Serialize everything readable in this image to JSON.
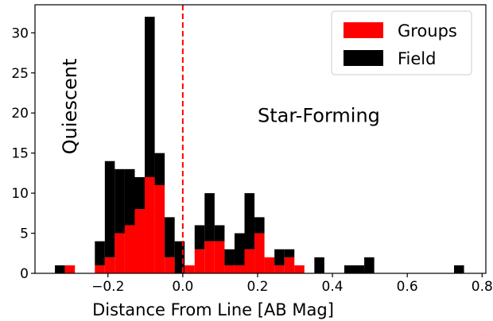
{
  "chart_data": {
    "type": "bar",
    "stacked": true,
    "xlabel": "Distance From Line [AB Mag]",
    "ylabel": "",
    "xlim": [
      -0.395,
      0.81
    ],
    "ylim": [
      0,
      33.5
    ],
    "xticks": [
      -0.2,
      0.0,
      0.2,
      0.4,
      0.6,
      0.8
    ],
    "xtick_labels": [
      "−0.2",
      "0.0",
      "0.2",
      "0.4",
      "0.6",
      "0.8"
    ],
    "yticks": [
      0,
      5,
      10,
      15,
      20,
      25,
      30
    ],
    "ytick_labels": [
      "0",
      "5",
      "10",
      "15",
      "20",
      "25",
      "30"
    ],
    "bin_width": 0.0267,
    "bin_edges": [
      -0.3417,
      -0.315,
      -0.2883,
      -0.2617,
      -0.235,
      -0.2083,
      -0.1817,
      -0.155,
      -0.1283,
      -0.1017,
      -0.075,
      -0.0483,
      -0.0217,
      0.005,
      0.0317,
      0.0583,
      0.085,
      0.1117,
      0.1383,
      0.165,
      0.1917,
      0.2183,
      0.245,
      0.2717,
      0.2983,
      0.325,
      0.3517,
      0.3783,
      0.405,
      0.4317,
      0.4583,
      0.485,
      0.5117,
      0.5383,
      0.565,
      0.5917,
      0.6183,
      0.645,
      0.6717,
      0.6983,
      0.725,
      0.7517
    ],
    "series": [
      {
        "name": "Groups",
        "color": "#ff0000",
        "values": [
          0,
          1,
          0,
          0,
          1,
          2,
          5,
          6,
          8,
          12,
          11,
          2,
          0,
          1,
          3,
          4,
          4,
          1,
          1,
          3,
          5,
          2,
          1,
          2,
          1,
          0,
          0,
          0,
          0,
          0,
          0,
          0,
          0,
          0,
          0,
          0,
          0,
          0,
          0,
          0,
          0
        ]
      },
      {
        "name": "Field",
        "color": "#000000",
        "values": [
          1,
          0,
          0,
          0,
          3,
          12,
          8,
          7,
          4,
          20,
          4,
          5,
          4,
          0,
          3,
          6,
          2,
          2,
          4,
          7,
          2,
          0,
          2,
          1,
          0,
          0,
          2,
          0,
          0,
          1,
          1,
          2,
          0,
          0,
          0,
          0,
          0,
          0,
          0,
          0,
          1
        ]
      }
    ],
    "reference_line": {
      "x": 0.0,
      "color": "#ff0000",
      "style": "dashed"
    },
    "annotations": [
      {
        "text": "Quiescent",
        "x": -0.285,
        "y": 26.8,
        "rotation": -90
      },
      {
        "text": "Star-Forming",
        "x": 0.2,
        "y": 18.9,
        "rotation": 0
      }
    ],
    "legend": {
      "placement": "top-right",
      "entries": [
        "Groups",
        "Field"
      ]
    },
    "grid": false
  }
}
